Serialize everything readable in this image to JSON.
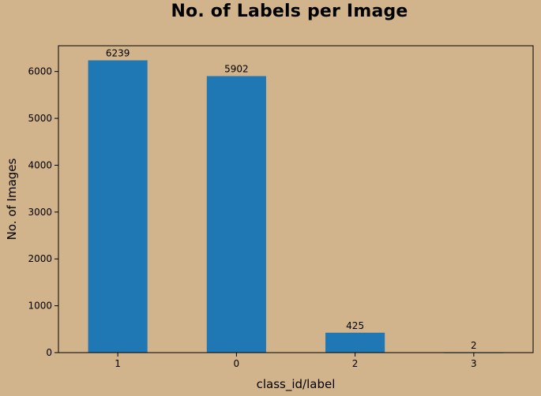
{
  "chart_data": {
    "type": "bar",
    "title": "No. of Labels per Image",
    "xlabel": "class_id/label",
    "ylabel": "No. of Images",
    "categories": [
      "1",
      "0",
      "2",
      "3"
    ],
    "values": [
      6239,
      5902,
      425,
      2
    ],
    "data_labels": [
      "6239",
      "5902",
      "425",
      "2"
    ],
    "ylim": [
      0,
      6550
    ],
    "yticks": [
      0,
      1000,
      2000,
      3000,
      4000,
      5000,
      6000
    ],
    "ytick_labels": [
      "0",
      "1000",
      "2000",
      "3000",
      "4000",
      "5000",
      "6000"
    ],
    "grid": false,
    "bar_color": "#1f77b4",
    "background_color": "#d2b48c"
  }
}
